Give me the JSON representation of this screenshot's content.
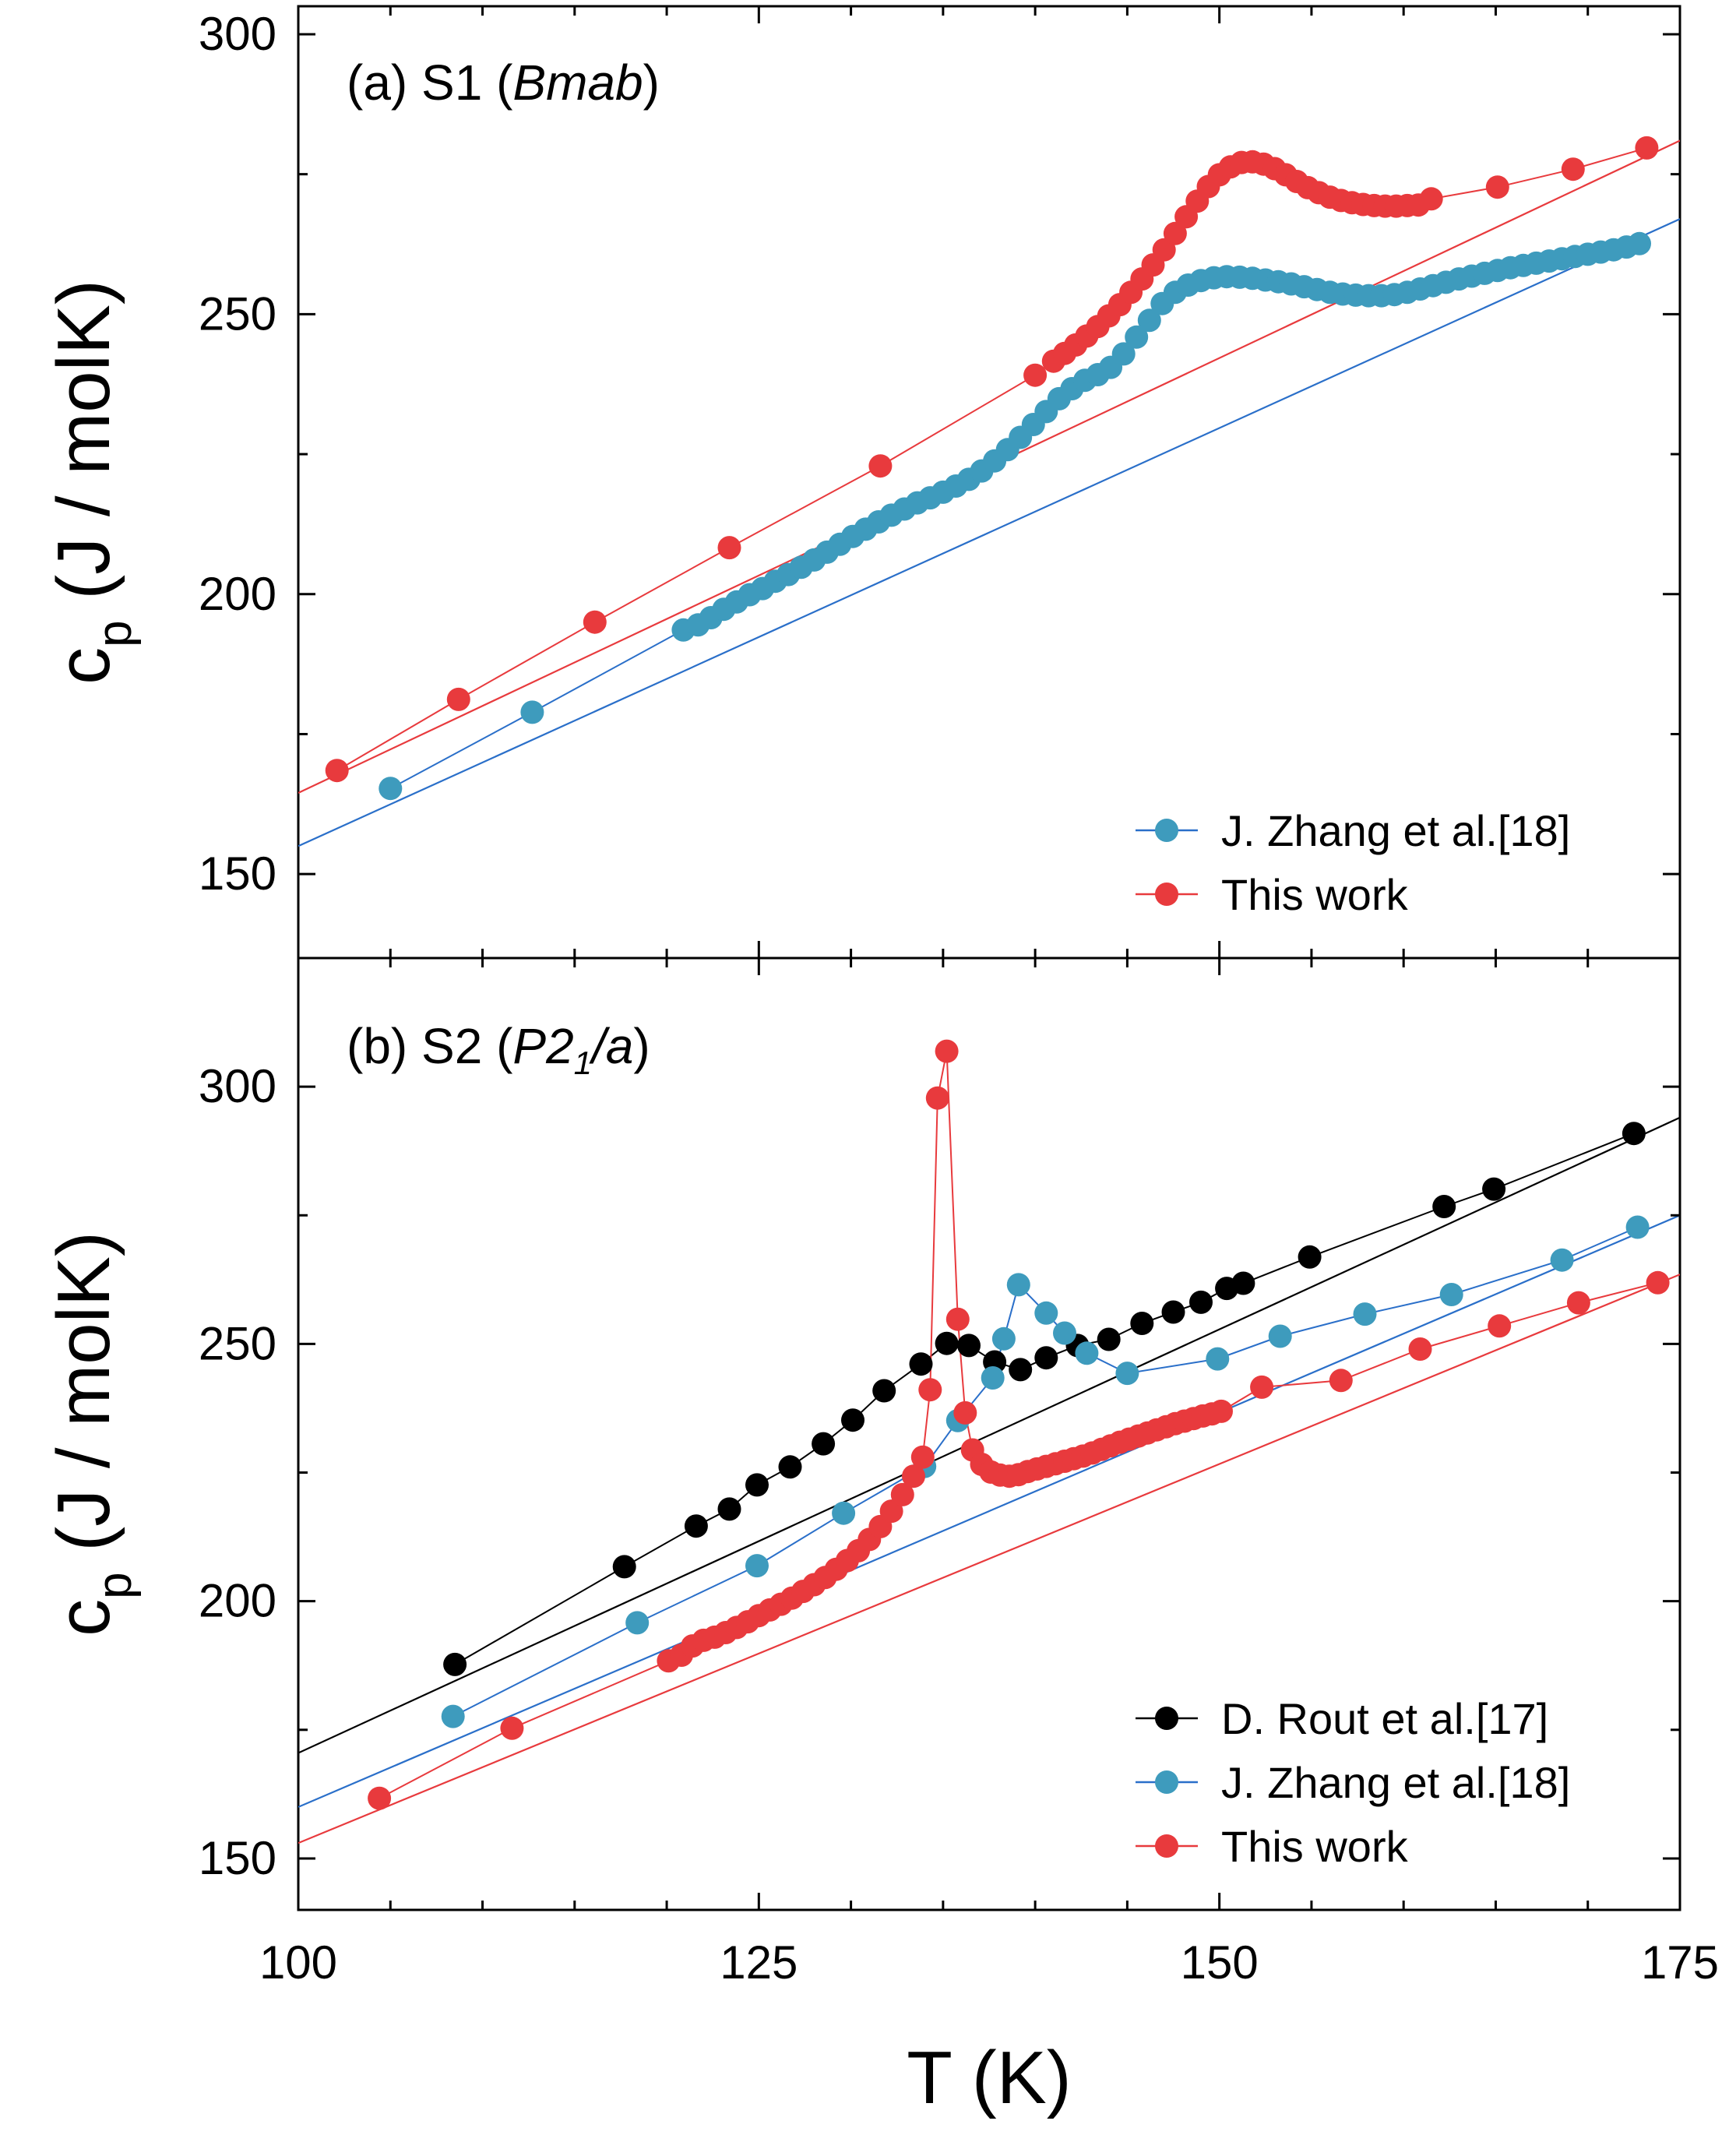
{
  "figure": {
    "xlabel": "T (K)",
    "ylabel_main": "c",
    "ylabel_sub": "p",
    "ylabel_rest": " (J / molK)",
    "x_ticks": [
      "100",
      "125",
      "150",
      "175"
    ]
  },
  "colors": {
    "rout": "#000000",
    "zhang": "#3e9bbd",
    "zhang_line": "#2a6fc9",
    "thiswork": "#e83a3d"
  },
  "chart_data": [
    {
      "type": "line",
      "panel": "a",
      "title_prefix": "(a) S1 (",
      "title_italic": "Bmab",
      "title_suffix": ")",
      "xlabel": "T (K)",
      "ylabel": "c_p (J / molK)",
      "xlim": [
        100,
        175
      ],
      "ylim": [
        135,
        305
      ],
      "y_ticks": [
        "150",
        "200",
        "250",
        "300"
      ],
      "legend_position": "bottom-right",
      "series": [
        {
          "name": "J. Zhang et al.[18]",
          "key": "zhang",
          "fit_line": {
            "x": [
              100,
              175
            ],
            "y": [
              155,
              267
            ]
          },
          "x": [
            105,
            112.7,
            120.9,
            121.7,
            122.4,
            123.1,
            123.8,
            124.5,
            125.2,
            125.9,
            126.6,
            127.3,
            128.0,
            128.7,
            129.4,
            130.1,
            130.8,
            131.5,
            132.2,
            132.9,
            133.6,
            134.3,
            135.0,
            135.7,
            136.4,
            137.1,
            137.8,
            138.5,
            139.2,
            139.9,
            140.6,
            141.3,
            142.0,
            142.7,
            143.4,
            144.1,
            144.8,
            145.5,
            146.2,
            146.9,
            147.6,
            148.3,
            149.0,
            149.7,
            150.4,
            151.1,
            151.8,
            152.5,
            153.2,
            153.9,
            154.6,
            155.3,
            156.0,
            156.7,
            157.4,
            158.1,
            158.8,
            159.5,
            160.2,
            160.9,
            161.6,
            162.3,
            163.0,
            163.7,
            164.4,
            165.1,
            165.8,
            166.5,
            167.2,
            167.9,
            168.6,
            169.3,
            170.0,
            170.7,
            171.4,
            172.1,
            172.8
          ],
          "y": [
            165.3,
            178.9,
            193.6,
            194.5,
            195.8,
            197.3,
            198.6,
            199.9,
            201.0,
            202.3,
            203.5,
            204.8,
            206.1,
            207.5,
            208.9,
            210.3,
            211.6,
            212.9,
            214.1,
            215.2,
            216.3,
            217.2,
            218.2,
            219.3,
            220.5,
            222.0,
            223.8,
            225.8,
            228.0,
            230.3,
            232.6,
            234.9,
            236.7,
            238.2,
            239.2,
            240.5,
            242.9,
            245.9,
            248.9,
            251.9,
            253.9,
            255.2,
            256.0,
            256.5,
            256.7,
            256.6,
            256.4,
            256.1,
            255.8,
            255.4,
            254.9,
            254.4,
            253.9,
            253.6,
            253.4,
            253.3,
            253.3,
            253.5,
            253.9,
            254.5,
            255.1,
            255.7,
            256.3,
            256.8,
            257.3,
            257.8,
            258.3,
            258.7,
            259.1,
            259.5,
            259.9,
            260.3,
            260.7,
            261.1,
            261.5,
            262.0,
            262.6
          ]
        },
        {
          "name": "This work",
          "key": "thiswork",
          "fit_line": {
            "x": [
              100,
              175
            ],
            "y": [
              164.5,
              281
            ]
          },
          "x": [
            102.1,
            108.7,
            116.1,
            123.4,
            131.6,
            140.0,
            141.0,
            141.6,
            142.2,
            142.8,
            143.4,
            144.0,
            144.6,
            145.2,
            145.8,
            146.4,
            147.0,
            147.6,
            148.2,
            148.8,
            149.4,
            150.0,
            150.6,
            151.2,
            151.8,
            152.4,
            153.0,
            153.6,
            154.2,
            154.8,
            155.4,
            156.0,
            156.6,
            157.2,
            157.8,
            158.4,
            159.0,
            159.6,
            160.2,
            160.8,
            161.5,
            165.1,
            169.2,
            173.2
          ],
          "y": [
            168.5,
            181.2,
            195.0,
            208.3,
            222.9,
            239.1,
            241.6,
            243.0,
            244.5,
            246.1,
            247.8,
            249.7,
            251.7,
            253.9,
            256.3,
            258.8,
            261.5,
            264.4,
            267.4,
            270.2,
            272.8,
            274.9,
            276.3,
            277.1,
            277.2,
            276.8,
            276.0,
            274.9,
            273.7,
            272.6,
            271.7,
            270.9,
            270.3,
            269.9,
            269.6,
            269.4,
            269.3,
            269.3,
            269.4,
            269.5,
            270.6,
            272.7,
            275.9,
            279.7
          ]
        }
      ]
    },
    {
      "type": "line",
      "panel": "b",
      "title_prefix": "(b) S2 (",
      "title_italic": "P2",
      "title_italic_sub": "1",
      "title_suffix_italic": "/a",
      "title_suffix": ")",
      "xlabel": "T (K)",
      "ylabel": "c_p (J / molK)",
      "xlim": [
        100,
        175
      ],
      "ylim": [
        140,
        325
      ],
      "y_ticks": [
        "150",
        "200",
        "250",
        "300"
      ],
      "legend_position": "bottom-right",
      "series": [
        {
          "name": "D. Rout et al.[17]",
          "key": "rout",
          "fit_line": {
            "x": [
              100,
              175
            ],
            "y": [
              170.5,
              294
            ]
          },
          "x": [
            108.5,
            117.7,
            121.6,
            123.4,
            124.9,
            126.7,
            128.5,
            130.1,
            131.8,
            133.8,
            135.2,
            136.4,
            137.8,
            139.2,
            140.6,
            142.3,
            144.0,
            145.8,
            147.5,
            149.0,
            150.4,
            151.3,
            154.9,
            162.2,
            164.9,
            172.5
          ],
          "y": [
            187.7,
            206.7,
            214.6,
            217.9,
            222.6,
            226.1,
            230.6,
            235.2,
            240.9,
            246.1,
            250.1,
            249.7,
            246.5,
            245.0,
            247.3,
            249.7,
            250.9,
            254.0,
            256.2,
            258.1,
            260.8,
            261.8,
            266.9,
            276.7,
            280.1,
            290.9
          ]
        },
        {
          "name": "J. Zhang et al.[18]",
          "key": "zhang",
          "fit_line": {
            "x": [
              100,
              175
            ],
            "y": [
              160,
              275
            ]
          },
          "x": [
            108.4,
            118.4,
            124.9,
            129.6,
            134.0,
            135.8,
            137.7,
            138.3,
            139.1,
            140.6,
            141.6,
            142.8,
            145.0,
            149.9,
            153.3,
            157.9,
            162.6,
            168.6,
            172.7
          ],
          "y": [
            177.6,
            195.8,
            206.9,
            217.1,
            226.2,
            235.1,
            243.4,
            251.0,
            261.5,
            256.0,
            252.1,
            248.2,
            244.3,
            247.1,
            251.5,
            255.8,
            259.6,
            266.3,
            272.7
          ],
          "fit_extra": true
        },
        {
          "name": "This work",
          "key": "thiswork",
          "fit_line": {
            "x": [
              100,
              175
            ],
            "y": [
              153,
              263.5
            ]
          },
          "x": [
            104.4,
            111.6,
            120.1,
            120.8,
            121.4,
            122.0,
            122.6,
            123.2,
            123.8,
            124.4,
            125.0,
            125.6,
            126.2,
            126.8,
            127.4,
            128.0,
            128.6,
            129.2,
            129.8,
            130.4,
            131.0,
            131.6,
            132.2,
            132.8,
            133.4,
            133.9,
            134.3,
            134.7,
            135.2,
            135.8,
            136.2,
            136.6,
            137.1,
            137.6,
            138.1,
            138.6,
            139.1,
            139.6,
            140.1,
            140.6,
            141.1,
            141.6,
            142.1,
            142.6,
            143.1,
            143.6,
            144.1,
            144.6,
            145.1,
            145.6,
            146.1,
            146.6,
            147.1,
            147.6,
            148.1,
            148.6,
            149.1,
            149.6,
            150.1,
            152.3,
            156.6,
            160.9,
            165.2,
            169.5,
            173.8
          ],
          "y": [
            161.7,
            175.3,
            188.4,
            189.5,
            191.3,
            192.4,
            193.0,
            193.9,
            194.9,
            196.0,
            197.2,
            198.3,
            199.4,
            200.6,
            201.9,
            203.2,
            204.6,
            206.2,
            207.9,
            209.8,
            212.0,
            214.5,
            217.5,
            220.7,
            224.3,
            228.0,
            241.1,
            297.8,
            306.9,
            254.8,
            236.6,
            229.4,
            226.6,
            225.1,
            224.5,
            224.3,
            224.6,
            225.2,
            225.7,
            226.2,
            226.7,
            227.2,
            227.7,
            228.2,
            228.8,
            229.5,
            230.2,
            230.9,
            231.5,
            232.1,
            232.7,
            233.3,
            233.9,
            234.5,
            235.0,
            235.5,
            236.0,
            236.4,
            236.9,
            241.6,
            242.9,
            249.0,
            253.5,
            258.0,
            261.9
          ]
        }
      ]
    }
  ]
}
